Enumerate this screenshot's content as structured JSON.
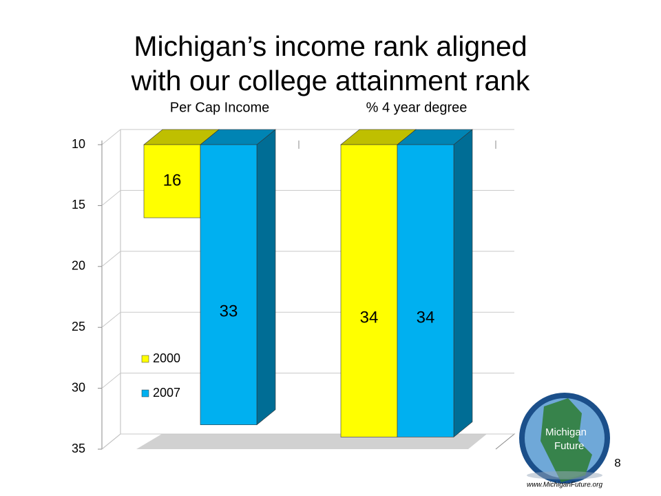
{
  "title": "Michigan’s income rank aligned with our college attainment rank",
  "chart_data": {
    "type": "bar3d",
    "categories": [
      "Per Cap Income",
      "% 4 year degree"
    ],
    "series": [
      {
        "name": "2000",
        "color": "#ffff00",
        "values": [
          16,
          34
        ]
      },
      {
        "name": "2007",
        "color": "#00b0f0",
        "values": [
          33,
          34
        ]
      }
    ],
    "ylim": [
      10,
      35
    ],
    "yticks": [
      10,
      15,
      20,
      25,
      30,
      35
    ],
    "y_inverted": true,
    "grid": true,
    "legend": "bottom-left"
  },
  "page_number": 8,
  "logo": {
    "name": [
      "Michigan",
      "Future"
    ],
    "url": "www.MichiganFuture.org"
  }
}
